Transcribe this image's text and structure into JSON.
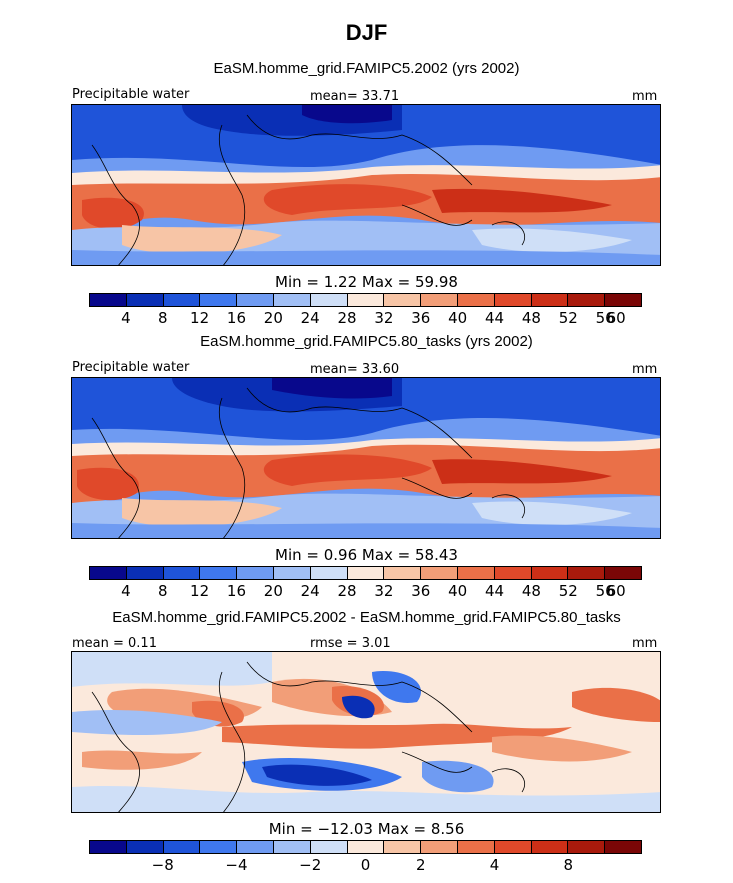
{
  "title": "DJF",
  "panels": [
    {
      "subtitle": "EaSM.homme_grid.FAMIPC5.2002 (yrs 2002)",
      "left_label": "Precipitable water",
      "center_label": "mean=  33.71",
      "units": "mm",
      "minmax": "Min =    1.22 Max =   59.98",
      "colorbar_ticks": [
        "4",
        "8",
        "12",
        "16",
        "20",
        "24",
        "28",
        "32",
        "36",
        "40",
        "44",
        "48",
        "52",
        "56",
        "60"
      ],
      "colors": [
        "#08088c",
        "#0a2fb5",
        "#1f54d9",
        "#3f78ee",
        "#6f9bf2",
        "#a1bff5",
        "#cfdff7",
        "#fbe9dc",
        "#f7c5a6",
        "#f29e78",
        "#ea7048",
        "#e0492a",
        "#cc2f17",
        "#a81a0c",
        "#7a0606"
      ]
    },
    {
      "subtitle": "EaSM.homme_grid.FAMIPC5.80_tasks (yrs 2002)",
      "left_label": "Precipitable water",
      "center_label": "mean=  33.60",
      "units": "mm",
      "minmax": "Min =    0.96 Max =   58.43",
      "colorbar_ticks": [
        "4",
        "8",
        "12",
        "16",
        "20",
        "24",
        "28",
        "32",
        "36",
        "40",
        "44",
        "48",
        "52",
        "56",
        "60"
      ],
      "colors": [
        "#08088c",
        "#0a2fb5",
        "#1f54d9",
        "#3f78ee",
        "#6f9bf2",
        "#a1bff5",
        "#cfdff7",
        "#fbe9dc",
        "#f7c5a6",
        "#f29e78",
        "#ea7048",
        "#e0492a",
        "#cc2f17",
        "#a81a0c",
        "#7a0606"
      ]
    },
    {
      "subtitle": "EaSM.homme_grid.FAMIPC5.2002 - EaSM.homme_grid.FAMIPC5.80_tasks",
      "left_label": "mean =   0.11",
      "center_label": "rmse =   3.01",
      "units": "mm",
      "minmax": "Min = −12.03 Max =   8.56",
      "colorbar_ticks": [
        "−8",
        "−4",
        "−2",
        "0",
        "2",
        "4",
        "8"
      ],
      "colors": [
        "#08088c",
        "#0a2fb5",
        "#1f54d9",
        "#3f78ee",
        "#6f9bf2",
        "#a1bff5",
        "#cfdff7",
        "#fbe9dc",
        "#f7c5a6",
        "#f29e78",
        "#ea7048",
        "#e0492a",
        "#cc2f17",
        "#a81a0c",
        "#7a0606"
      ]
    }
  ]
}
